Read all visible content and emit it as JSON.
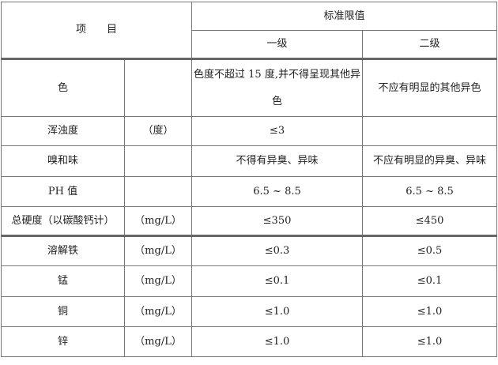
{
  "header": {
    "item": "项　　目",
    "standard_limit": "标准限值",
    "grade1": "一级",
    "grade2": "二级"
  },
  "rows": [
    {
      "item": "色",
      "unit": "",
      "grade1": "色度不超过 15 度,并不得呈现其他异色",
      "grade2": "不应有明显的其他异色"
    },
    {
      "item": "浑浊度",
      "unit": "（度）",
      "grade1": "≤3",
      "grade2": ""
    },
    {
      "item": "嗅和味",
      "unit": "",
      "grade1": "不得有异臭、异味",
      "grade2": "不应有明显的异臭、异味"
    },
    {
      "item": "PH 值",
      "unit": "",
      "grade1": "6.5 ~ 8.5",
      "grade2": "6.5 ~ 8.5"
    },
    {
      "item": "总硬度（以碳酸钙计）",
      "unit": "（mg/L）",
      "grade1": "≤350",
      "grade2": "≤450"
    },
    {
      "item": "溶解铁",
      "unit": "（mg/L）",
      "grade1": "≤0.3",
      "grade2": "≤0.5"
    },
    {
      "item": "锰",
      "unit": "（mg/L）",
      "grade1": "≤0.1",
      "grade2": "≤0.1"
    },
    {
      "item": "铜",
      "unit": "（mg/L）",
      "grade1": "≤1.0",
      "grade2": "≤1.0"
    },
    {
      "item": "锌",
      "unit": "（mg/L）",
      "grade1": "≤1.0",
      "grade2": "≤1.0"
    }
  ]
}
